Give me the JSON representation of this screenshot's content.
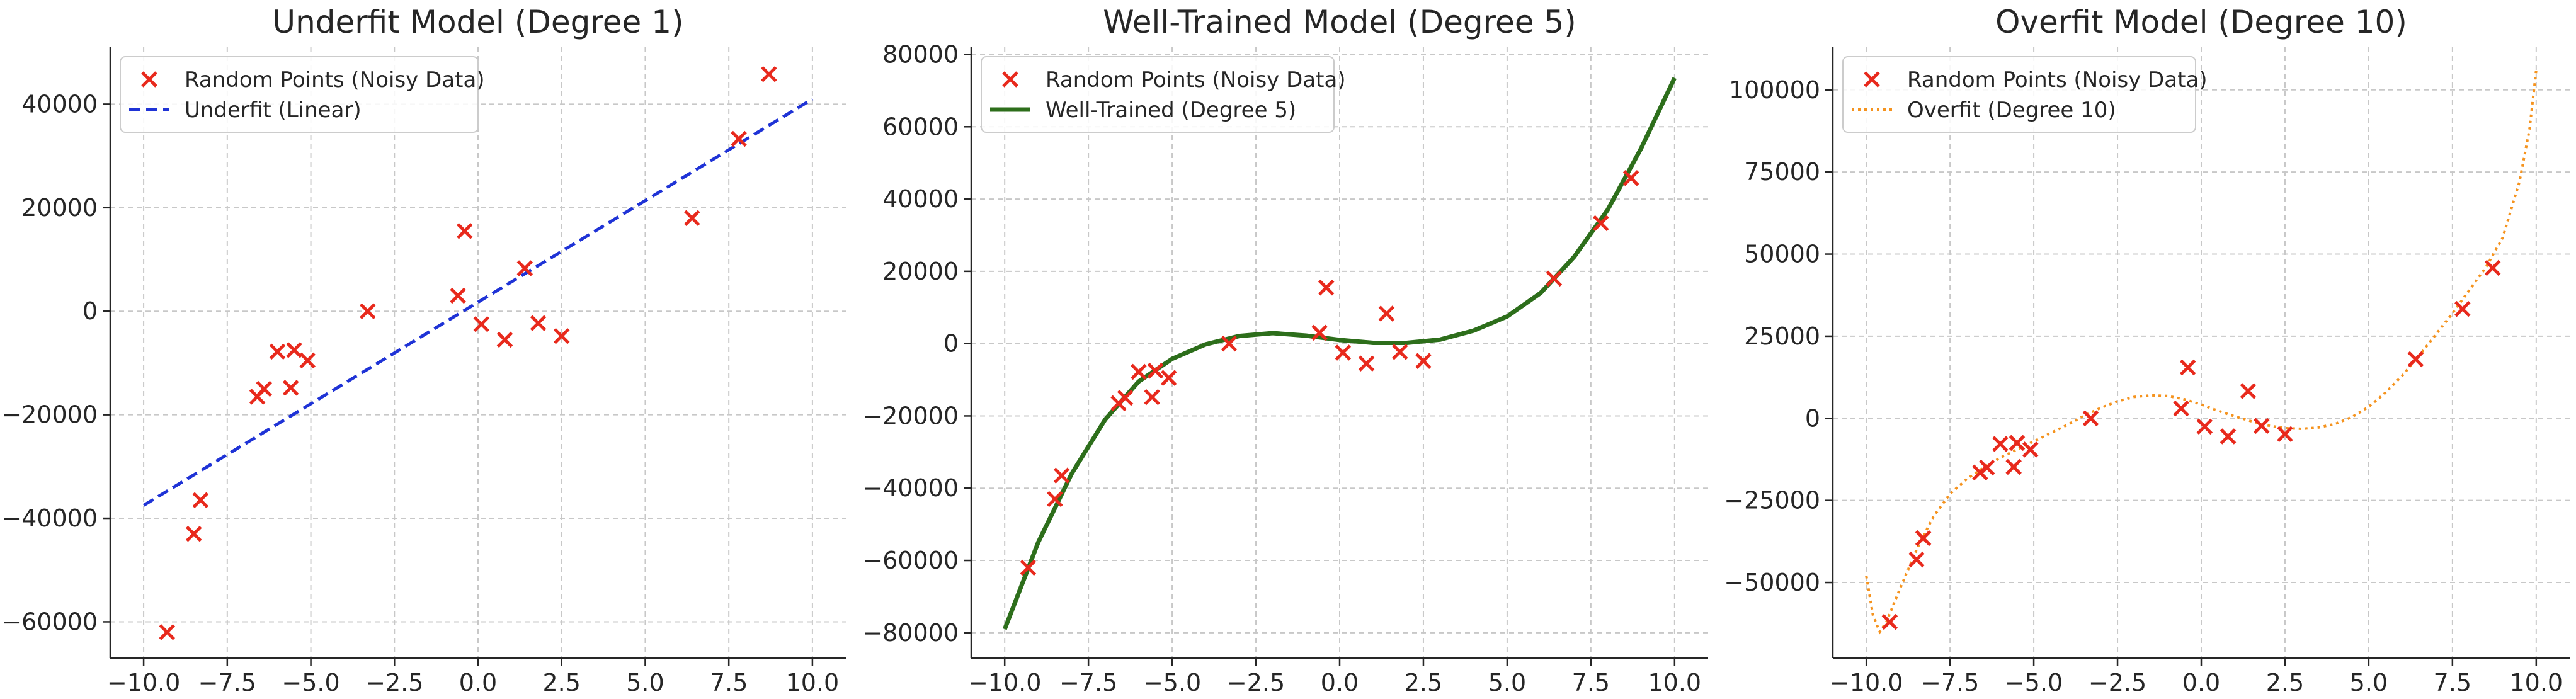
{
  "chart_data": [
    {
      "type": "line",
      "title": "Underfit Model (Degree 1)",
      "xlim": [
        -11.0,
        11.0
      ],
      "ylim": [
        -67000,
        51000
      ],
      "xticks": [
        -10.0,
        -7.5,
        -5.0,
        -2.5,
        0.0,
        2.5,
        5.0,
        7.5,
        10.0
      ],
      "xtick_labels": [
        "−10.0",
        "−7.5",
        "−5.0",
        "−2.5",
        "0.0",
        "2.5",
        "5.0",
        "7.5",
        "10.0"
      ],
      "yticks": [
        -60000,
        -40000,
        -20000,
        0,
        20000,
        40000
      ],
      "ytick_labels": [
        "−60000",
        "−40000",
        "−20000",
        "0",
        "20000",
        "40000"
      ],
      "grid": true,
      "legend_position": "top-left",
      "series": [
        {
          "name": "Random Points (Noisy Data)",
          "kind": "scatter",
          "marker": "x",
          "color": "#e8291c",
          "x": [
            -9.3,
            -8.5,
            -8.3,
            -6.6,
            -6.4,
            -6.0,
            -5.6,
            -5.5,
            -5.1,
            -3.3,
            -0.6,
            -0.4,
            0.1,
            0.8,
            1.4,
            1.8,
            2.5,
            6.4,
            7.8,
            8.7
          ],
          "y": [
            -62000,
            -43000,
            -36500,
            -16500,
            -15000,
            -7800,
            -14800,
            -7500,
            -9500,
            0,
            3000,
            15500,
            -2500,
            -5500,
            8300,
            -2300,
            -4800,
            18000,
            33300,
            45800
          ]
        },
        {
          "name": "Underfit (Linear)",
          "kind": "line",
          "style": "dashed",
          "color": "#1f33d6",
          "x": [
            -10.0,
            10.0
          ],
          "y": [
            -37500,
            41000
          ]
        }
      ]
    },
    {
      "type": "line",
      "title": "Well-Trained Model (Degree 5)",
      "xlim": [
        -11.0,
        11.0
      ],
      "ylim": [
        -87000,
        82000
      ],
      "xticks": [
        -10.0,
        -7.5,
        -5.0,
        -2.5,
        0.0,
        2.5,
        5.0,
        7.5,
        10.0
      ],
      "xtick_labels": [
        "−10.0",
        "−7.5",
        "−5.0",
        "−2.5",
        "0.0",
        "2.5",
        "5.0",
        "7.5",
        "10.0"
      ],
      "yticks": [
        -80000,
        -60000,
        -40000,
        -20000,
        0,
        20000,
        40000,
        60000,
        80000
      ],
      "ytick_labels": [
        "−80000",
        "−60000",
        "−40000",
        "−20000",
        "0",
        "20000",
        "40000",
        "60000",
        "80000"
      ],
      "grid": true,
      "legend_position": "top-left",
      "series": [
        {
          "name": "Random Points (Noisy Data)",
          "kind": "scatter",
          "marker": "x",
          "color": "#e8291c",
          "x": [
            -9.3,
            -8.5,
            -8.3,
            -6.6,
            -6.4,
            -6.0,
            -5.6,
            -5.5,
            -5.1,
            -3.3,
            -0.6,
            -0.4,
            0.1,
            0.8,
            1.4,
            1.8,
            2.5,
            6.4,
            7.8,
            8.7
          ],
          "y": [
            -62000,
            -43000,
            -36500,
            -16500,
            -15000,
            -7800,
            -14800,
            -7500,
            -9500,
            0,
            3000,
            15500,
            -2500,
            -5500,
            8300,
            -2300,
            -4800,
            18000,
            33300,
            45800
          ]
        },
        {
          "name": "Well-Trained (Degree 5)",
          "kind": "line",
          "style": "solid",
          "color": "#2d6e1b",
          "x": [
            -10.0,
            -9.0,
            -8.0,
            -7.0,
            -6.0,
            -5.0,
            -4.0,
            -3.0,
            -2.0,
            -1.0,
            0.0,
            1.0,
            2.0,
            3.0,
            4.0,
            5.0,
            6.0,
            7.0,
            8.0,
            9.0,
            10.0
          ],
          "y": [
            -79000,
            -55000,
            -36000,
            -21000,
            -10500,
            -4200,
            -200,
            2100,
            2900,
            2200,
            1000,
            200,
            200,
            1100,
            3600,
            7500,
            14000,
            24000,
            37000,
            54000,
            73500
          ]
        }
      ]
    },
    {
      "type": "line",
      "title": "Overfit Model (Degree 10)",
      "xlim": [
        -11.0,
        11.0
      ],
      "ylim": [
        -73000,
        113000
      ],
      "xticks": [
        -10.0,
        -7.5,
        -5.0,
        -2.5,
        0.0,
        2.5,
        5.0,
        7.5,
        10.0
      ],
      "xtick_labels": [
        "−10.0",
        "−7.5",
        "−5.0",
        "−2.5",
        "0.0",
        "2.5",
        "5.0",
        "7.5",
        "10.0"
      ],
      "yticks": [
        -50000,
        -25000,
        0,
        25000,
        50000,
        75000,
        100000
      ],
      "ytick_labels": [
        "−50000",
        "−25000",
        "0",
        "25000",
        "50000",
        "75000",
        "100000"
      ],
      "grid": true,
      "legend_position": "top-left",
      "series": [
        {
          "name": "Random Points (Noisy Data)",
          "kind": "scatter",
          "marker": "x",
          "color": "#e8291c",
          "x": [
            -9.3,
            -8.5,
            -8.3,
            -6.6,
            -6.4,
            -6.0,
            -5.6,
            -5.5,
            -5.1,
            -3.3,
            -0.6,
            -0.4,
            0.1,
            0.8,
            1.4,
            1.8,
            2.5,
            6.4,
            7.8,
            8.7
          ],
          "y": [
            -62000,
            -43000,
            -36500,
            -16500,
            -15000,
            -7800,
            -14800,
            -7500,
            -9500,
            0,
            3000,
            15500,
            -2500,
            -5500,
            8300,
            -2300,
            -4800,
            18000,
            33300,
            45800
          ]
        },
        {
          "name": "Overfit (Degree 10)",
          "kind": "line",
          "style": "dotted",
          "color": "#f5931e",
          "x": [
            -10.0,
            -9.8,
            -9.6,
            -9.4,
            -9.0,
            -8.5,
            -8.0,
            -7.5,
            -7.0,
            -6.5,
            -6.0,
            -5.5,
            -5.0,
            -4.5,
            -4.0,
            -3.5,
            -3.0,
            -2.5,
            -2.0,
            -1.5,
            -1.0,
            -0.5,
            0.0,
            0.5,
            1.0,
            1.5,
            2.0,
            2.5,
            3.0,
            3.5,
            4.0,
            4.5,
            5.0,
            5.5,
            6.0,
            6.5,
            7.0,
            7.5,
            8.0,
            8.5,
            9.0,
            9.5,
            9.8,
            10.0
          ],
          "y": [
            -48000,
            -60000,
            -65000,
            -62000,
            -52000,
            -40000,
            -30000,
            -23000,
            -18500,
            -15000,
            -12000,
            -9500,
            -7000,
            -4500,
            -2000,
            800,
            3200,
            5200,
            6500,
            7000,
            6800,
            5800,
            4200,
            2300,
            600,
            -900,
            -2200,
            -3000,
            -3200,
            -2800,
            -1700,
            400,
            3500,
            7800,
            13000,
            19000,
            25500,
            32000,
            39000,
            46000,
            55000,
            72000,
            88000,
            106000
          ]
        }
      ]
    }
  ]
}
